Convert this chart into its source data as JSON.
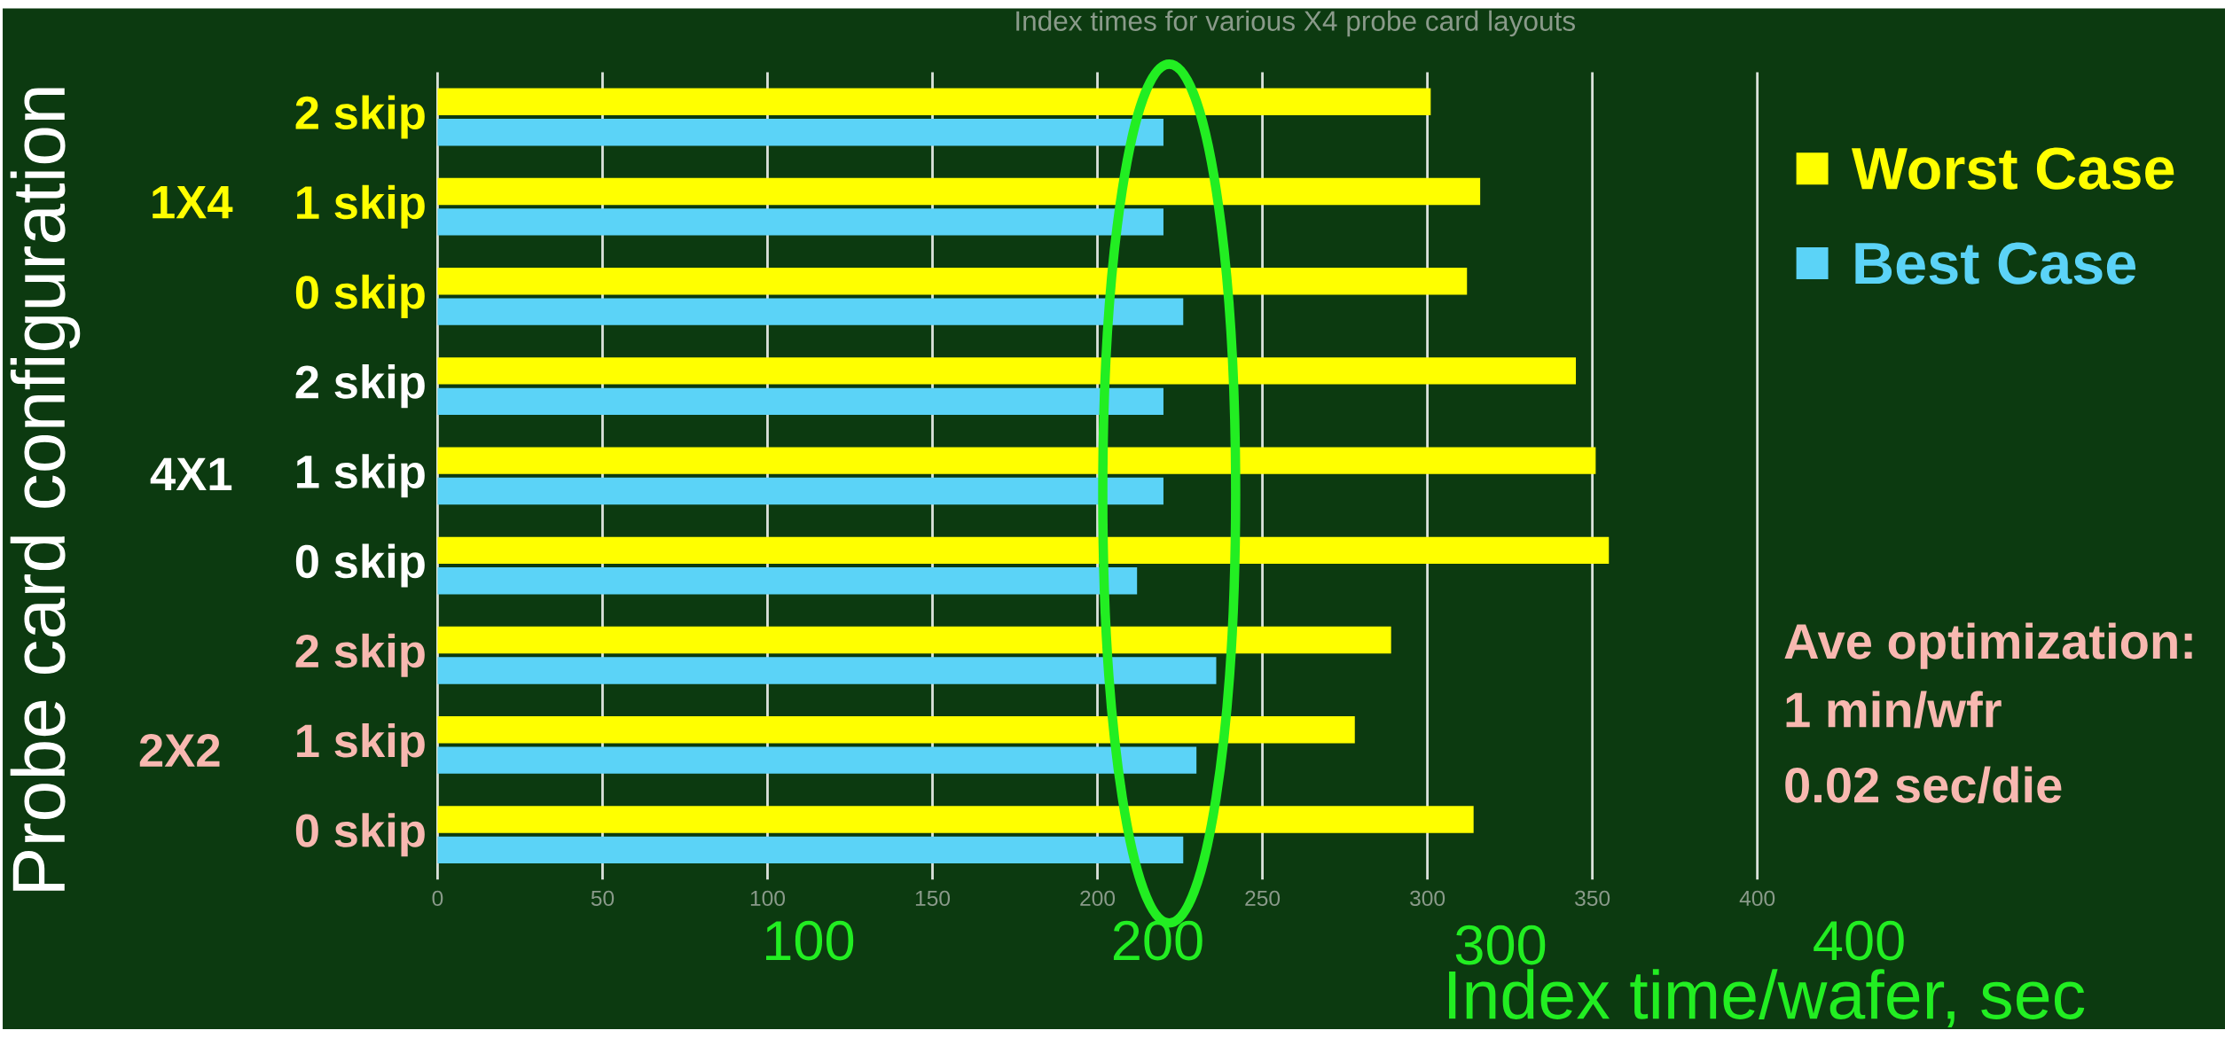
{
  "chart_data": {
    "type": "bar",
    "orientation": "horizontal",
    "title": "Index times for various X4 probe card layouts",
    "xlabel": "Index time/wafer, sec",
    "ylabel": "Probe card configuration",
    "categories": [
      "2 skip",
      "1 skip",
      "0 skip",
      "2 skip",
      "1 skip",
      "0 skip",
      "2 skip",
      "1 skip",
      "0 skip"
    ],
    "series": [
      {
        "name": "Worst Case",
        "color": "#ffff00",
        "values": [
          301,
          316,
          312,
          345,
          351,
          355,
          289,
          278,
          314
        ]
      },
      {
        "name": "Best Case",
        "color": "#5bd3f7",
        "values": [
          220,
          220,
          226,
          220,
          220,
          212,
          236,
          230,
          226
        ]
      }
    ],
    "xlim": [
      0,
      400
    ],
    "xticks": [
      0,
      50,
      100,
      150,
      200,
      250,
      300,
      350,
      400
    ],
    "grid": "x",
    "legend": "right",
    "annotations": [
      "1X4",
      "4X1",
      "2X2",
      "100",
      "200",
      "300",
      "400",
      "Ave optimization:",
      "1 min/wfr",
      "0.02 sec/die"
    ]
  }
}
